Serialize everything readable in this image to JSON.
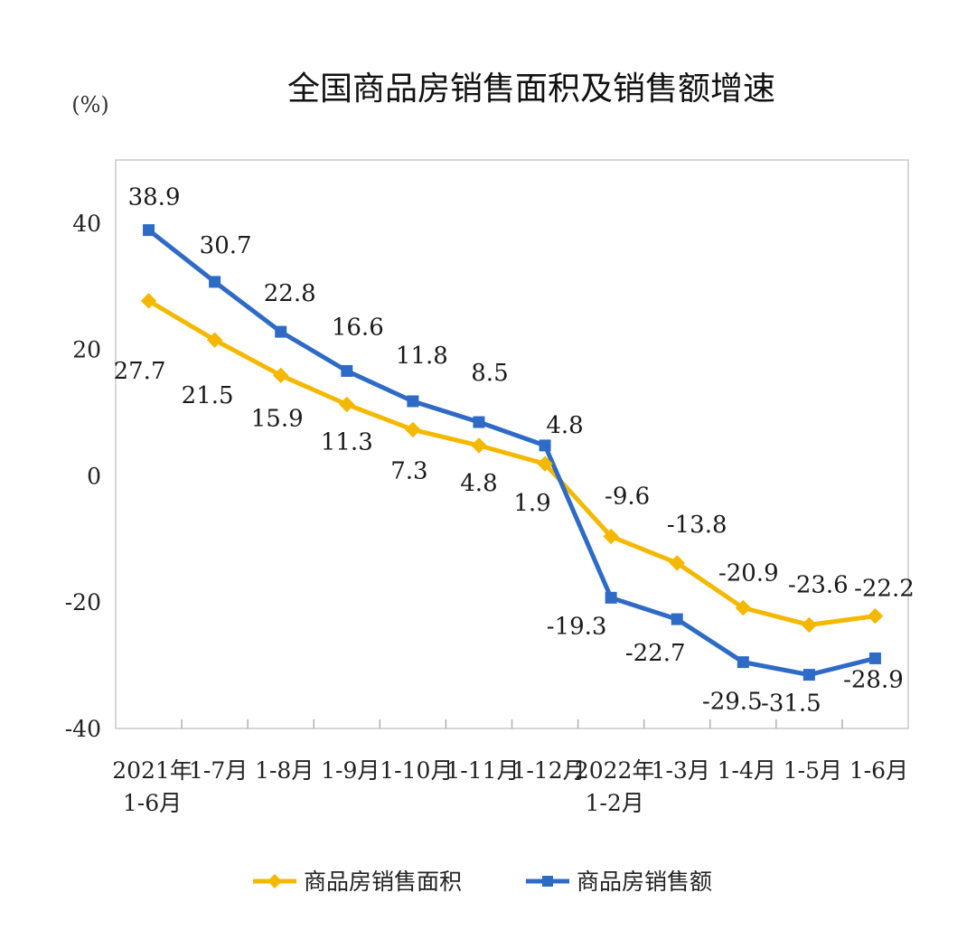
{
  "chart_data": {
    "type": "line",
    "title": "全国商品房销售面积及销售额增速",
    "ylabel": "(%)",
    "xlabel": "",
    "ylim": [
      -40,
      50
    ],
    "yticks": [
      40,
      20,
      0,
      -20,
      -40
    ],
    "grid": false,
    "legend_position": "bottom",
    "categories": [
      [
        "2021年",
        "1-6月"
      ],
      [
        "1-7月"
      ],
      [
        "1-8月"
      ],
      [
        "1-9月"
      ],
      [
        "1-10月"
      ],
      [
        "1-11月"
      ],
      [
        "1-12月"
      ],
      [
        "2022年",
        "1-2月"
      ],
      [
        "1-3月"
      ],
      [
        "1-4月"
      ],
      [
        "1-5月"
      ],
      [
        "1-6月"
      ]
    ],
    "series": [
      {
        "name": "商品房销售面积",
        "color": "#F5B800",
        "marker": "diamond",
        "values": [
          27.7,
          21.5,
          15.9,
          11.3,
          7.3,
          4.8,
          1.9,
          -9.6,
          -13.8,
          -20.9,
          -23.6,
          -22.2
        ]
      },
      {
        "name": "商品房销售额",
        "color": "#2E6BC6",
        "marker": "square",
        "values": [
          38.9,
          30.7,
          22.8,
          16.6,
          11.8,
          8.5,
          4.8,
          -19.3,
          -22.7,
          -29.5,
          -31.5,
          -28.9
        ]
      }
    ]
  }
}
